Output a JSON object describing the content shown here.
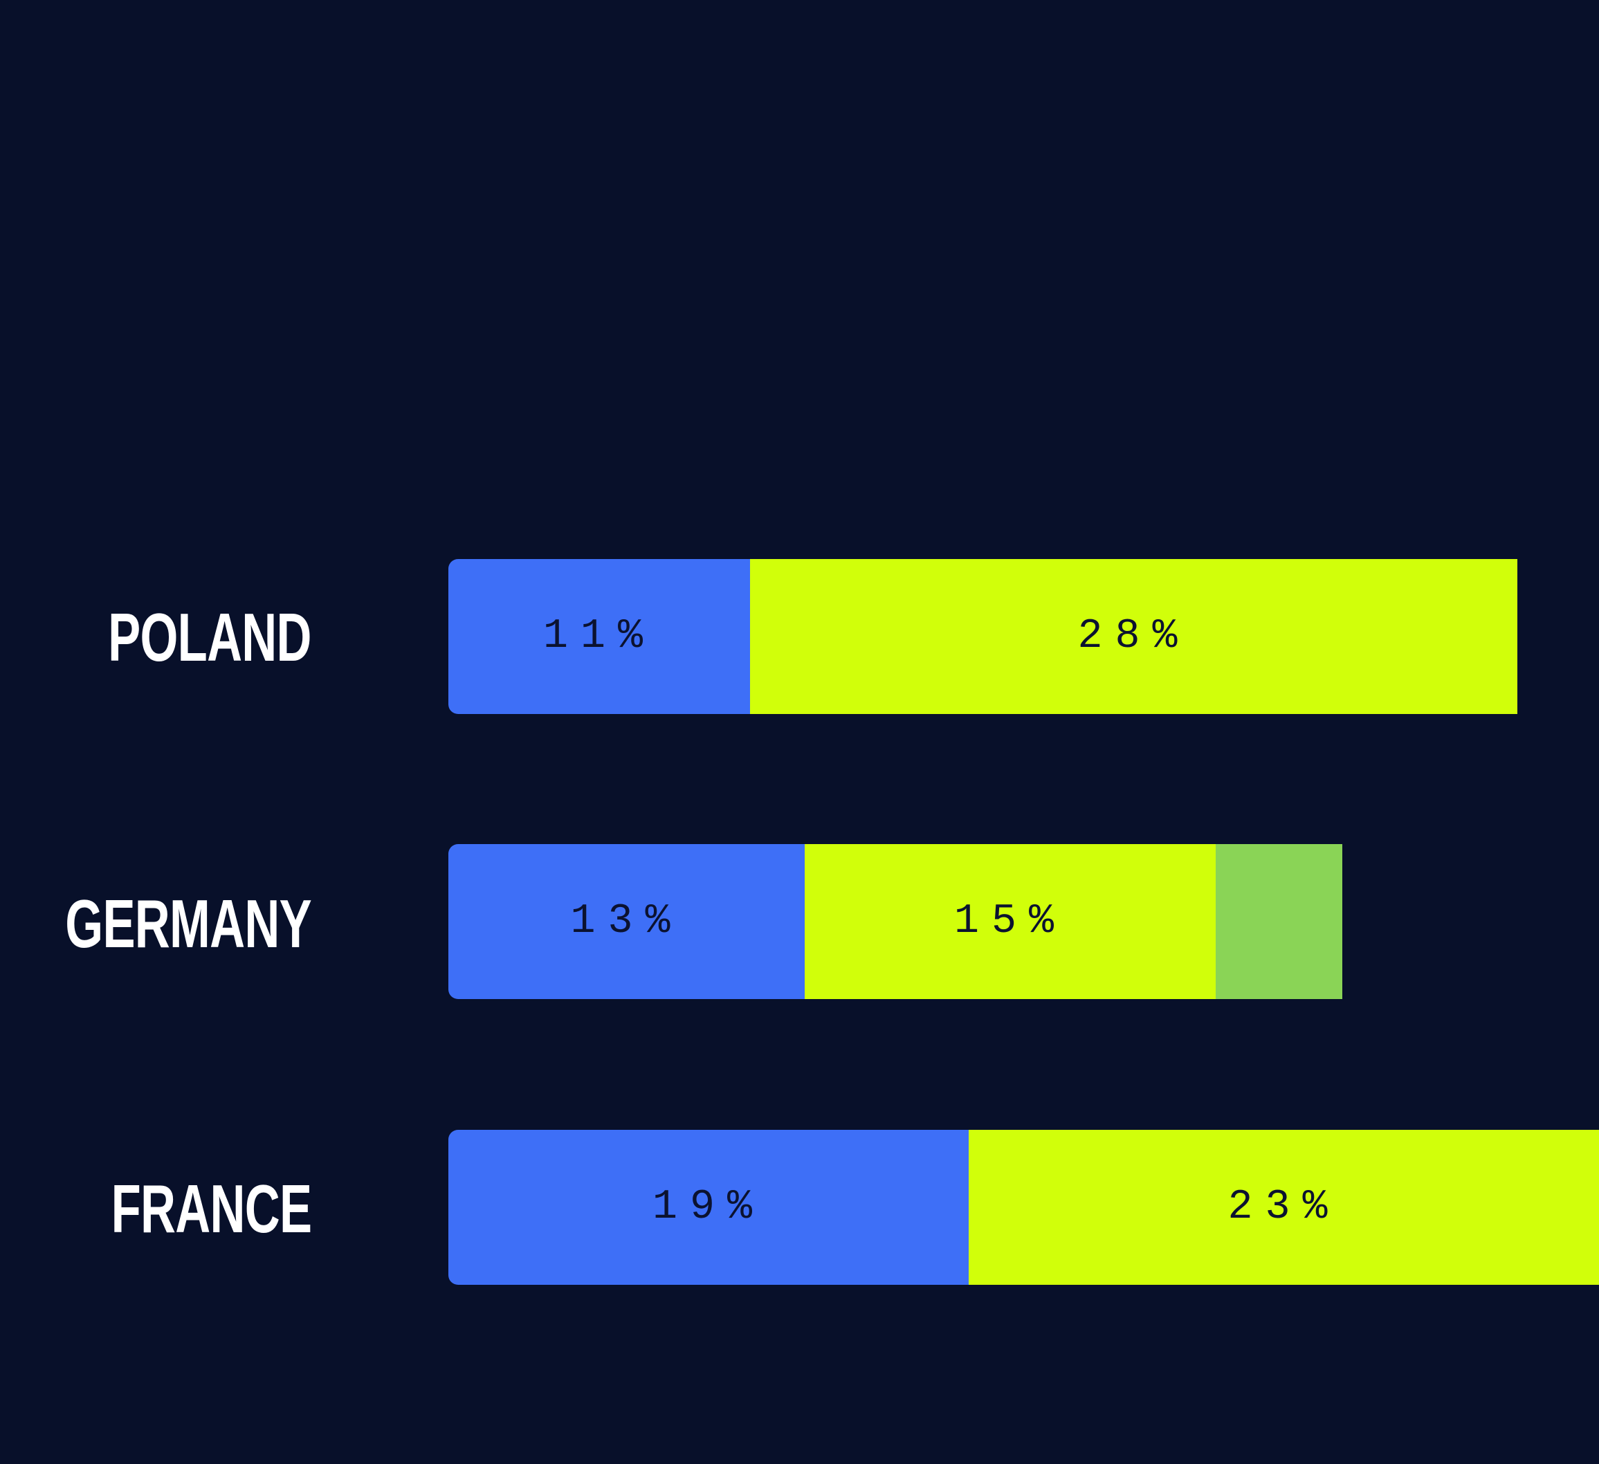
{
  "colors": {
    "background": "#08102a",
    "segment_1": "#3e6ff7",
    "segment_2": "#d1ff0a",
    "segment_3": "#8ad456",
    "label_text": "#ffffff",
    "value_text": "#0b1230"
  },
  "chart_data": {
    "type": "bar",
    "orientation": "horizontal",
    "stacked": true,
    "categories": [
      "POLAND",
      "GERMANY",
      "FRANCE"
    ],
    "series": [
      {
        "values": [
          11,
          13,
          19
        ],
        "labels": [
          "11%",
          "13%",
          "19%"
        ]
      },
      {
        "values": [
          28,
          15,
          23
        ],
        "labels": [
          "28%",
          "15%",
          "23%"
        ]
      },
      {
        "values": [
          null,
          null,
          null
        ],
        "labels": [
          "",
          "",
          ""
        ]
      }
    ],
    "unit": "%",
    "title": "",
    "xlabel": "",
    "ylabel": "",
    "grid": false,
    "legend": "none"
  }
}
